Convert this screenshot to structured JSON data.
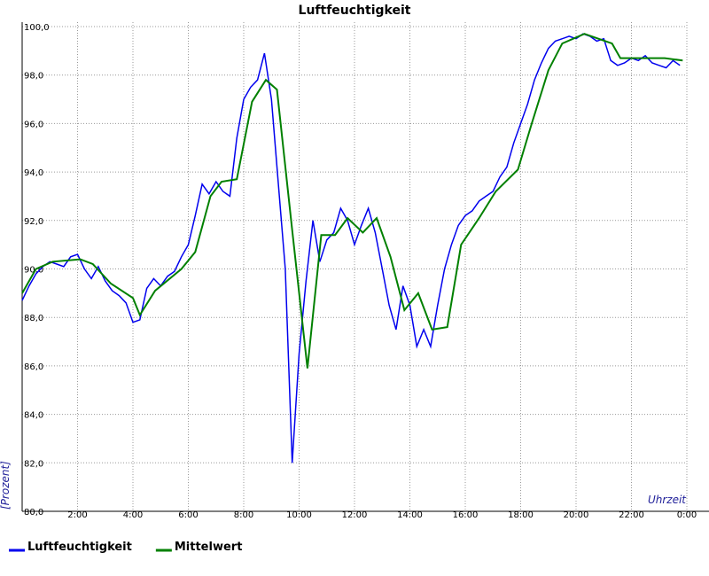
{
  "chart_data": {
    "type": "line",
    "title": "Luftfeuchtigkeit",
    "x_label": "Uhrzeit",
    "y_label": "[Prozent]",
    "xlim": [
      0,
      24
    ],
    "ylim": [
      80,
      100
    ],
    "xticks": [
      {
        "value": 2,
        "label": "2:00"
      },
      {
        "value": 4,
        "label": "4:00"
      },
      {
        "value": 6,
        "label": "6:00"
      },
      {
        "value": 8,
        "label": "8:00"
      },
      {
        "value": 10,
        "label": "10:00"
      },
      {
        "value": 12,
        "label": "12:00"
      },
      {
        "value": 14,
        "label": "14:00"
      },
      {
        "value": 16,
        "label": "16:00"
      },
      {
        "value": 18,
        "label": "18:00"
      },
      {
        "value": 20,
        "label": "20:00"
      },
      {
        "value": 22,
        "label": "22:00"
      },
      {
        "value": 24,
        "label": "0:00"
      }
    ],
    "yticks": [
      {
        "value": 80,
        "label": "80,0"
      },
      {
        "value": 82,
        "label": "82,0"
      },
      {
        "value": 84,
        "label": "84,0"
      },
      {
        "value": 86,
        "label": "86,0"
      },
      {
        "value": 88,
        "label": "88,0"
      },
      {
        "value": 90,
        "label": "90,0"
      },
      {
        "value": 92,
        "label": "92,0"
      },
      {
        "value": 94,
        "label": "94,0"
      },
      {
        "value": 96,
        "label": "96,0"
      },
      {
        "value": 98,
        "label": "98,0"
      },
      {
        "value": 100,
        "label": "100,0"
      }
    ],
    "grid": true,
    "legend": "bottom-left",
    "series": [
      {
        "name": "Luftfeuchtigkeit",
        "color": "#0000ee",
        "x": [
          0,
          0.25,
          0.5,
          0.75,
          1,
          1.25,
          1.5,
          1.75,
          2,
          2.25,
          2.5,
          2.75,
          3,
          3.25,
          3.5,
          3.75,
          4,
          4.25,
          4.5,
          4.75,
          5,
          5.25,
          5.5,
          5.75,
          6,
          6.25,
          6.5,
          6.75,
          7,
          7.25,
          7.5,
          7.75,
          8,
          8.25,
          8.5,
          8.75,
          9,
          9.25,
          9.5,
          9.75,
          10,
          10.25,
          10.5,
          10.75,
          11,
          11.25,
          11.5,
          11.75,
          12,
          12.25,
          12.5,
          12.75,
          13,
          13.25,
          13.5,
          13.75,
          14,
          14.25,
          14.5,
          14.75,
          15,
          15.25,
          15.5,
          15.75,
          16,
          16.25,
          16.5,
          16.75,
          17,
          17.25,
          17.5,
          17.75,
          18,
          18.25,
          18.5,
          18.75,
          19,
          19.25,
          19.5,
          19.75,
          20,
          20.25,
          20.5,
          20.75,
          21,
          21.25,
          21.5,
          21.75,
          22,
          22.25,
          22.5,
          22.75,
          23,
          23.25,
          23.5,
          23.75
        ],
        "values": [
          88.7,
          89.3,
          89.8,
          90.1,
          90.3,
          90.2,
          90.1,
          90.5,
          90.6,
          90.0,
          89.6,
          90.1,
          89.5,
          89.1,
          88.9,
          88.6,
          87.8,
          87.9,
          89.2,
          89.6,
          89.3,
          89.7,
          89.9,
          90.5,
          91.0,
          92.2,
          93.5,
          93.1,
          93.6,
          93.2,
          93.0,
          95.4,
          97.0,
          97.5,
          97.8,
          98.9,
          97.0,
          93.5,
          90.0,
          82.0,
          86.5,
          89.5,
          92.0,
          90.3,
          91.2,
          91.5,
          92.5,
          92.0,
          91.0,
          91.8,
          92.5,
          91.5,
          90.0,
          88.5,
          87.5,
          89.3,
          88.5,
          86.8,
          87.5,
          86.8,
          88.5,
          90.0,
          91.0,
          91.8,
          92.2,
          92.4,
          92.8,
          93.0,
          93.2,
          93.8,
          94.2,
          95.2,
          96.0,
          96.8,
          97.8,
          98.5,
          99.1,
          99.4,
          99.5,
          99.6,
          99.5,
          99.7,
          99.6,
          99.4,
          99.5,
          98.6,
          98.4,
          98.5,
          98.7,
          98.6,
          98.8,
          98.5,
          98.4,
          98.3,
          98.6,
          98.4
        ]
      },
      {
        "name": "Mittelwert",
        "color": "#008000",
        "x": [
          0,
          0.5,
          1.1,
          2.1,
          2.55,
          3.2,
          4.0,
          4.25,
          4.8,
          5.75,
          6.25,
          6.8,
          7.2,
          7.75,
          8.3,
          8.8,
          9.2,
          9.75,
          10.3,
          10.8,
          11.3,
          11.75,
          12.3,
          12.8,
          13.3,
          13.8,
          14.3,
          14.8,
          15.35,
          15.85,
          16.5,
          17.1,
          17.9,
          18.4,
          19.0,
          19.5,
          20.3,
          21.3,
          21.6,
          22.4,
          23.2,
          23.85
        ],
        "values": [
          89.0,
          90.0,
          90.3,
          90.4,
          90.2,
          89.4,
          88.8,
          88.1,
          89.1,
          90.0,
          90.7,
          93.0,
          93.6,
          93.7,
          96.9,
          97.8,
          97.4,
          91.6,
          85.9,
          91.4,
          91.4,
          92.1,
          91.5,
          92.1,
          90.5,
          88.3,
          89.0,
          87.5,
          87.6,
          91.0,
          92.1,
          93.2,
          94.1,
          96.0,
          98.2,
          99.3,
          99.7,
          99.3,
          98.7,
          98.7,
          98.7,
          98.6
        ]
      }
    ]
  }
}
